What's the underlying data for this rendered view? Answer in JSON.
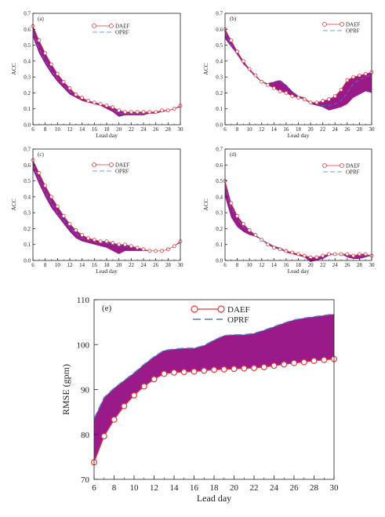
{
  "colors": {
    "band": "#9b1a8a",
    "daef": "#e0383c",
    "oprf": "#4a7fc4",
    "axis": "#222222"
  },
  "chart_data": [
    {
      "type": "line",
      "panel_label": "(a)",
      "xlabel": "Lead day",
      "ylabel": "ACC",
      "xlim": [
        6,
        30
      ],
      "ylim": [
        0,
        0.7
      ],
      "xticks": [
        6,
        8,
        10,
        12,
        14,
        16,
        18,
        20,
        22,
        24,
        26,
        28,
        30
      ],
      "yticks": [
        0.0,
        0.1,
        0.2,
        0.3,
        0.4,
        0.5,
        0.6,
        0.7
      ],
      "legend_position": "top-center",
      "x": [
        6,
        7,
        8,
        9,
        10,
        11,
        12,
        13,
        14,
        15,
        16,
        17,
        18,
        19,
        20,
        21,
        22,
        23,
        24,
        25,
        26,
        27,
        28,
        29,
        30
      ],
      "series": [
        {
          "name": "DAEF",
          "style": "line-markers",
          "values": [
            0.62,
            0.53,
            0.45,
            0.38,
            0.32,
            0.27,
            0.23,
            0.19,
            0.17,
            0.15,
            0.14,
            0.13,
            0.12,
            0.11,
            0.09,
            0.08,
            0.08,
            0.08,
            0.08,
            0.08,
            0.08,
            0.09,
            0.09,
            0.1,
            0.12
          ]
        },
        {
          "name": "OPRF",
          "style": "dashed",
          "values": [
            0.58,
            0.48,
            0.4,
            0.34,
            0.29,
            0.25,
            0.21,
            0.18,
            0.16,
            0.15,
            0.14,
            0.13,
            0.12,
            0.1,
            0.07,
            0.07,
            0.07,
            0.07,
            0.07,
            0.08,
            0.08,
            0.08,
            0.09,
            0.1,
            0.12
          ]
        },
        {
          "name": "",
          "style": "band-lower",
          "values": [
            0.55,
            0.45,
            0.38,
            0.32,
            0.27,
            0.23,
            0.19,
            0.17,
            0.15,
            0.14,
            0.13,
            0.12,
            0.1,
            0.08,
            0.05,
            0.06,
            0.06,
            0.06,
            0.06,
            0.07,
            0.07,
            0.08,
            0.09,
            0.1,
            0.11
          ]
        }
      ]
    },
    {
      "type": "line",
      "panel_label": "(b)",
      "xlabel": "Lead day",
      "ylabel": "ACC",
      "xlim": [
        6,
        30
      ],
      "ylim": [
        0,
        0.7
      ],
      "xticks": [
        6,
        8,
        10,
        12,
        14,
        16,
        18,
        20,
        22,
        24,
        26,
        28,
        30
      ],
      "yticks": [
        0.0,
        0.1,
        0.2,
        0.3,
        0.4,
        0.5,
        0.6,
        0.7
      ],
      "legend_position": "top-right",
      "x": [
        6,
        7,
        8,
        9,
        10,
        11,
        12,
        13,
        14,
        15,
        16,
        17,
        18,
        19,
        20,
        21,
        22,
        23,
        24,
        25,
        26,
        27,
        28,
        29,
        30
      ],
      "series": [
        {
          "name": "DAEF",
          "style": "line-markers",
          "values": [
            0.6,
            0.53,
            0.46,
            0.4,
            0.35,
            0.31,
            0.27,
            0.25,
            0.23,
            0.21,
            0.2,
            0.18,
            0.17,
            0.16,
            0.14,
            0.14,
            0.15,
            0.16,
            0.18,
            0.22,
            0.28,
            0.3,
            0.31,
            0.32,
            0.33
          ]
        },
        {
          "name": "OPRF",
          "style": "dashed",
          "values": [
            0.58,
            0.5,
            0.44,
            0.39,
            0.34,
            0.3,
            0.27,
            0.26,
            0.27,
            0.28,
            0.25,
            0.21,
            0.18,
            0.17,
            0.13,
            0.13,
            0.12,
            0.12,
            0.13,
            0.15,
            0.2,
            0.26,
            0.28,
            0.3,
            0.31
          ]
        },
        {
          "name": "",
          "style": "band-lower",
          "values": [
            0.54,
            0.49,
            0.45,
            0.38,
            0.34,
            0.3,
            0.27,
            0.25,
            0.23,
            0.21,
            0.2,
            0.18,
            0.17,
            0.16,
            0.13,
            0.12,
            0.11,
            0.09,
            0.1,
            0.11,
            0.13,
            0.17,
            0.19,
            0.21,
            0.2
          ]
        }
      ]
    },
    {
      "type": "line",
      "panel_label": "(c)",
      "xlabel": "Lead day",
      "ylabel": "ACC",
      "xlim": [
        6,
        30
      ],
      "ylim": [
        0,
        0.7
      ],
      "xticks": [
        6,
        8,
        10,
        12,
        14,
        16,
        18,
        20,
        22,
        24,
        26,
        28,
        30
      ],
      "yticks": [
        0.0,
        0.1,
        0.2,
        0.3,
        0.4,
        0.5,
        0.6,
        0.7
      ],
      "legend_position": "top-center",
      "x": [
        6,
        7,
        8,
        9,
        10,
        11,
        12,
        13,
        14,
        15,
        16,
        17,
        18,
        19,
        20,
        21,
        22,
        23,
        24,
        25,
        26,
        27,
        28,
        29,
        30
      ],
      "series": [
        {
          "name": "DAEF",
          "style": "line-markers",
          "values": [
            0.63,
            0.55,
            0.47,
            0.4,
            0.34,
            0.28,
            0.23,
            0.19,
            0.16,
            0.14,
            0.13,
            0.12,
            0.12,
            0.11,
            0.1,
            0.1,
            0.09,
            0.08,
            0.07,
            0.06,
            0.06,
            0.06,
            0.07,
            0.09,
            0.12
          ]
        },
        {
          "name": "OPRF",
          "style": "dashed",
          "values": [
            0.6,
            0.51,
            0.43,
            0.36,
            0.3,
            0.25,
            0.21,
            0.17,
            0.14,
            0.13,
            0.12,
            0.11,
            0.11,
            0.1,
            0.09,
            0.09,
            0.08,
            0.08,
            0.07,
            0.06,
            0.06,
            0.06,
            0.07,
            0.09,
            0.12
          ]
        },
        {
          "name": "",
          "style": "band-lower",
          "values": [
            0.57,
            0.48,
            0.4,
            0.33,
            0.28,
            0.23,
            0.18,
            0.14,
            0.12,
            0.11,
            0.1,
            0.09,
            0.08,
            0.06,
            0.04,
            0.06,
            0.06,
            0.06,
            0.06,
            0.06,
            0.06,
            0.06,
            0.07,
            0.09,
            0.11
          ]
        }
      ]
    },
    {
      "type": "line",
      "panel_label": "(d)",
      "xlabel": "Lead day",
      "ylabel": "ACC",
      "xlim": [
        6,
        30
      ],
      "ylim": [
        0,
        0.7
      ],
      "xticks": [
        6,
        8,
        10,
        12,
        14,
        16,
        18,
        20,
        22,
        24,
        26,
        28,
        30
      ],
      "yticks": [
        0.0,
        0.1,
        0.2,
        0.3,
        0.4,
        0.5,
        0.6,
        0.7
      ],
      "legend_position": "top-right",
      "x": [
        6,
        7,
        8,
        9,
        10,
        11,
        12,
        13,
        14,
        15,
        16,
        17,
        18,
        19,
        20,
        21,
        22,
        23,
        24,
        25,
        26,
        27,
        28,
        29,
        30
      ],
      "series": [
        {
          "name": "DAEF",
          "style": "line-markers",
          "values": [
            0.5,
            0.36,
            0.28,
            0.23,
            0.19,
            0.16,
            0.13,
            0.1,
            0.08,
            0.07,
            0.06,
            0.05,
            0.04,
            0.03,
            0.02,
            0.02,
            0.03,
            0.04,
            0.04,
            0.04,
            0.04,
            0.03,
            0.04,
            0.04,
            0.03
          ]
        },
        {
          "name": "OPRF",
          "style": "dashed",
          "values": [
            0.47,
            0.33,
            0.26,
            0.21,
            0.18,
            0.16,
            0.13,
            0.11,
            0.09,
            0.08,
            0.06,
            0.05,
            0.04,
            0.03,
            0.02,
            0.02,
            0.03,
            0.04,
            0.04,
            0.04,
            0.03,
            0.03,
            0.03,
            0.03,
            0.03
          ]
        },
        {
          "name": "",
          "style": "band-lower",
          "values": [
            0.4,
            0.27,
            0.21,
            0.18,
            0.16,
            0.15,
            0.13,
            0.1,
            0.08,
            0.07,
            0.05,
            0.04,
            0.03,
            0.02,
            -0.01,
            0.0,
            0.01,
            0.03,
            0.04,
            0.04,
            0.02,
            0.01,
            0.01,
            0.02,
            0.03
          ]
        }
      ]
    },
    {
      "type": "line",
      "panel_label": "(e)",
      "xlabel": "Lead day",
      "ylabel": "RMSE (gpm)",
      "xlim": [
        6,
        30
      ],
      "ylim": [
        70,
        110
      ],
      "xticks": [
        6,
        8,
        10,
        12,
        14,
        16,
        18,
        20,
        22,
        24,
        26,
        28,
        30
      ],
      "yticks": [
        70,
        80,
        90,
        100,
        110
      ],
      "legend_position": "top-center",
      "x": [
        6,
        7,
        8,
        9,
        10,
        11,
        12,
        13,
        14,
        15,
        16,
        17,
        18,
        19,
        20,
        21,
        22,
        23,
        24,
        25,
        26,
        27,
        28,
        29,
        30
      ],
      "series": [
        {
          "name": "DAEF",
          "style": "line-markers",
          "values": [
            73.8,
            79.6,
            83.3,
            86.3,
            88.7,
            90.7,
            92.3,
            93.5,
            93.8,
            93.9,
            94.0,
            94.2,
            94.4,
            94.5,
            94.6,
            94.7,
            94.8,
            95.0,
            95.3,
            95.6,
            95.9,
            96.1,
            96.4,
            96.6,
            96.8
          ]
        },
        {
          "name": "OPRF",
          "style": "dashed",
          "values": [
            83.5,
            88.2,
            90.3,
            92.0,
            93.7,
            95.6,
            97.3,
            98.7,
            99.0,
            99.2,
            99.2,
            99.8,
            101.0,
            102.0,
            102.2,
            102.2,
            102.5,
            103.2,
            104.0,
            104.8,
            105.5,
            105.9,
            106.2,
            106.5,
            106.8
          ]
        },
        {
          "name": "",
          "style": "band-lower",
          "values": [
            73.8,
            79.6,
            83.3,
            86.3,
            88.7,
            90.7,
            92.3,
            93.5,
            93.8,
            93.9,
            94.0,
            94.2,
            94.4,
            94.5,
            94.6,
            94.7,
            94.8,
            95.0,
            95.3,
            95.6,
            95.9,
            96.1,
            96.4,
            96.6,
            96.8
          ]
        }
      ]
    }
  ]
}
